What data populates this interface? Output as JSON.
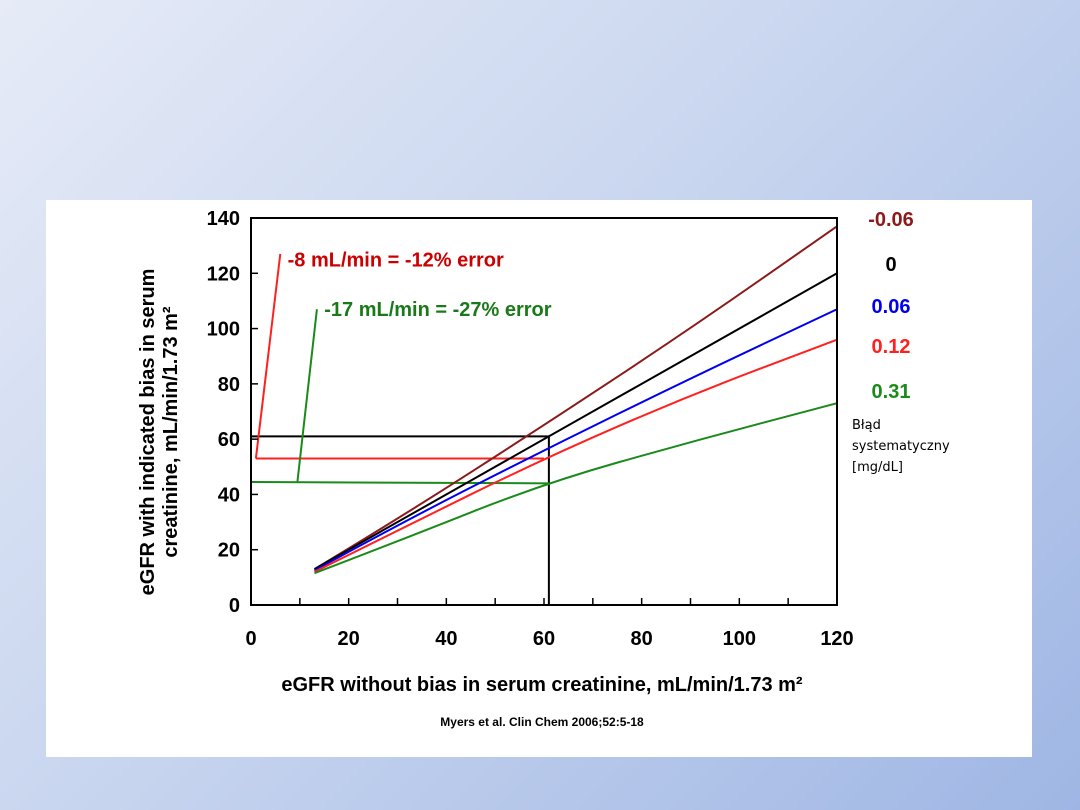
{
  "chart_data": {
    "type": "line",
    "xlabel": "eGFR without bias in serum creatinine, mL/min/1.73 m²",
    "ylabel_line1": "eGFR with indicated bias in serum",
    "ylabel_line2": "creatinine, mL/min/1.73 m²",
    "xlim": [
      0,
      120
    ],
    "ylim": [
      0,
      140
    ],
    "xticks": [
      "0",
      "20",
      "40",
      "60",
      "80",
      "100",
      "120"
    ],
    "yticks": [
      "0",
      "20",
      "40",
      "60",
      "80",
      "100",
      "120",
      "140"
    ],
    "grid": false,
    "series": [
      {
        "name": "-0.06",
        "color": "#8b1a1a",
        "x": [
          13,
          30,
          60,
          90,
          120
        ],
        "y": [
          13,
          31,
          65,
          100,
          137
        ]
      },
      {
        "name": "0",
        "color": "#000000",
        "x": [
          13,
          30,
          60,
          90,
          120
        ],
        "y": [
          13,
          30,
          60,
          90,
          120
        ]
      },
      {
        "name": "0.06",
        "color": "#0000ee",
        "x": [
          13,
          30,
          60,
          90,
          120
        ],
        "y": [
          12.5,
          29,
          56,
          82,
          107
        ]
      },
      {
        "name": "0.12",
        "color": "#ff2020",
        "x": [
          13,
          30,
          60,
          90,
          120
        ],
        "y": [
          12,
          27,
          53,
          76,
          96
        ]
      },
      {
        "name": "0.31",
        "color": "#1a8a1a",
        "x": [
          13,
          30,
          60,
          90,
          120
        ],
        "y": [
          11.5,
          23,
          44,
          59,
          73
        ]
      }
    ],
    "guides": [
      {
        "color": "#000000",
        "points": [
          [
            0,
            61
          ],
          [
            61,
            61
          ],
          [
            61,
            0
          ]
        ]
      },
      {
        "color": "#ff2020",
        "points": [
          [
            1,
            53
          ],
          [
            60,
            53
          ]
        ]
      },
      {
        "color": "#ff2020",
        "points": [
          [
            1,
            53
          ],
          [
            6,
            127
          ]
        ]
      },
      {
        "color": "#1a8a1a",
        "points": [
          [
            0,
            44.5
          ],
          [
            61,
            44
          ]
        ]
      },
      {
        "color": "#1a8a1a",
        "points": [
          [
            9.5,
            44.5
          ],
          [
            13.5,
            107
          ]
        ]
      }
    ],
    "annotations": [
      {
        "text": "-8 mL/min = -12% error",
        "color": "#cc0000",
        "x": 7.5,
        "y": 125
      },
      {
        "text": "-17 mL/min = -27% error",
        "color": "#1a7a1a",
        "x": 15,
        "y": 107
      }
    ],
    "legend_title_lines": [
      "Błąd",
      "systematyczny",
      "[mg/dL]"
    ],
    "citation": "Myers et al. Clin Chem 2006;52:5-18"
  }
}
